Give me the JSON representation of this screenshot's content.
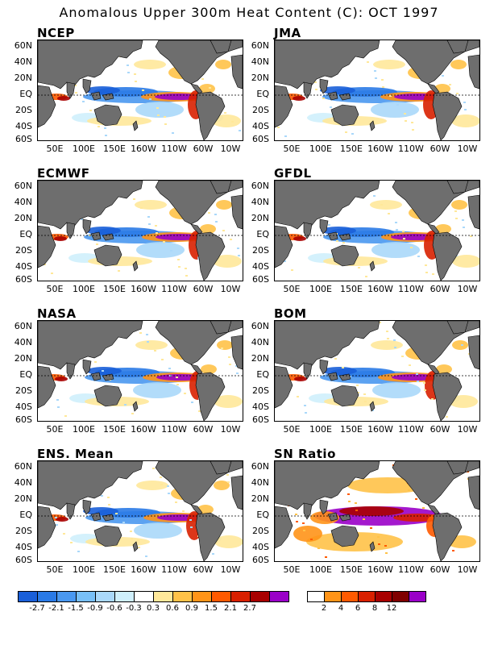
{
  "title": "Anomalous Upper 300m Heat Content (C): OCT 1997",
  "panels": [
    {
      "label": "NCEP"
    },
    {
      "label": "JMA"
    },
    {
      "label": "ECMWF"
    },
    {
      "label": "GFDL"
    },
    {
      "label": "NASA"
    },
    {
      "label": "BOM"
    },
    {
      "label": "ENS. Mean"
    },
    {
      "label": "SN Ratio"
    }
  ],
  "y_labels": [
    "60N",
    "40N",
    "20N",
    "EQ",
    "20S",
    "40S",
    "60S"
  ],
  "x_labels": [
    "50E",
    "100E",
    "150E",
    "160W",
    "110W",
    "60W",
    "10W"
  ],
  "colorbar_anomaly": {
    "colors": [
      "#1a5fd8",
      "#2a7ae6",
      "#4a98f0",
      "#78bff7",
      "#aad8fa",
      "#cfeffc",
      "#ffffff",
      "#ffe89a",
      "#ffc248",
      "#ff9418",
      "#ff5a00",
      "#d82000",
      "#a80000",
      "#9a00c8"
    ],
    "labels": [
      "-2.7",
      "-2.1",
      "-1.5",
      "-0.9",
      "-0.6",
      "-0.3",
      "0.3",
      "0.6",
      "0.9",
      "1.5",
      "2.1",
      "2.7"
    ]
  },
  "colorbar_ratio": {
    "colors": [
      "#ffffff",
      "#ff9418",
      "#ff5a00",
      "#d82000",
      "#a80000",
      "#800000",
      "#9a00c8"
    ],
    "labels": [
      "2",
      "4",
      "6",
      "8",
      "12"
    ]
  },
  "colors": {
    "land": "#6e6e6e",
    "warm": "#ff5a00",
    "hot": "#9a00c8",
    "cool": "#2a7ae6"
  }
}
